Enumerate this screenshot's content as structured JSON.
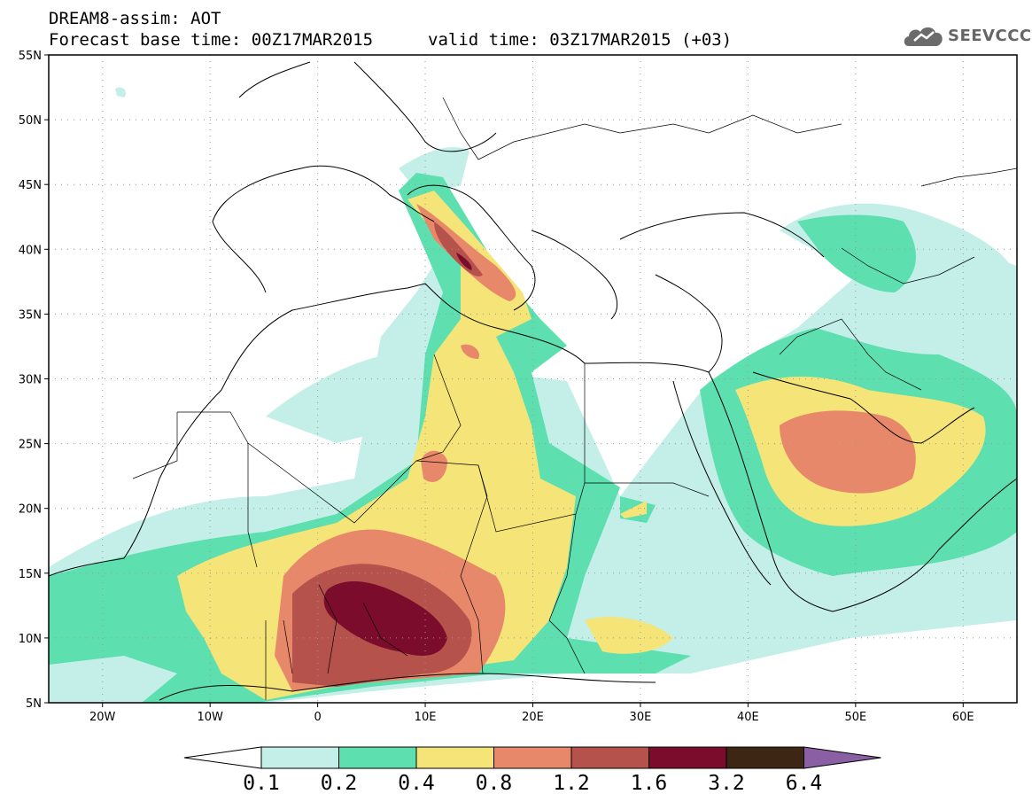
{
  "header": {
    "title": "DREAM8-assim: AOT",
    "base_time": "Forecast base time: 00Z17MAR2015",
    "valid_time": "valid time: 03Z17MAR2015 (+03)"
  },
  "logo": {
    "text": "SEEVCCC",
    "icon": "cloud-icon"
  },
  "map": {
    "lat_labels": [
      "55N",
      "50N",
      "45N",
      "40N",
      "35N",
      "30N",
      "25N",
      "20N",
      "15N",
      "10N",
      "5N"
    ],
    "lon_labels": [
      "20W",
      "10W",
      "0",
      "10E",
      "20E",
      "30E",
      "40E",
      "50E",
      "60E"
    ],
    "extent": {
      "lon": [
        -25,
        65
      ],
      "lat": [
        5,
        55
      ]
    },
    "grid": true
  },
  "colorbar": {
    "labels": [
      "0.1",
      "0.2",
      "0.4",
      "0.8",
      "1.2",
      "1.6",
      "3.2",
      "6.4"
    ],
    "colors": [
      "#ffffff",
      "#c3efe8",
      "#5ddfb0",
      "#f5e477",
      "#e8886a",
      "#b4524b",
      "#7c0c2b",
      "#3d2614",
      "#8b5fa3"
    ]
  }
}
